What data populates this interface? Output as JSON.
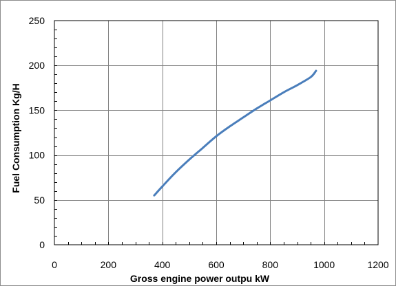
{
  "chart_data": {
    "type": "line",
    "title": "",
    "xlabel": "Gross engine power outpu  kW",
    "ylabel": "Fuel Consumption Kg/H",
    "xlim": [
      0,
      1200
    ],
    "ylim": [
      0,
      250
    ],
    "x_ticks": [
      0,
      200,
      400,
      600,
      800,
      1000,
      1200
    ],
    "y_ticks": [
      0,
      50,
      100,
      150,
      200,
      250
    ],
    "x_minor_step": 50,
    "y_minor_step": 10,
    "grid": true,
    "legend": "none",
    "series": [
      {
        "color": "#4a7ebb",
        "x": [
          370,
          400,
          450,
          500,
          550,
          600,
          650,
          700,
          750,
          800,
          850,
          900,
          950,
          970
        ],
        "y": [
          55,
          65,
          81,
          95,
          108,
          121,
          132,
          142,
          152,
          161,
          170,
          178,
          187,
          194
        ]
      }
    ]
  }
}
